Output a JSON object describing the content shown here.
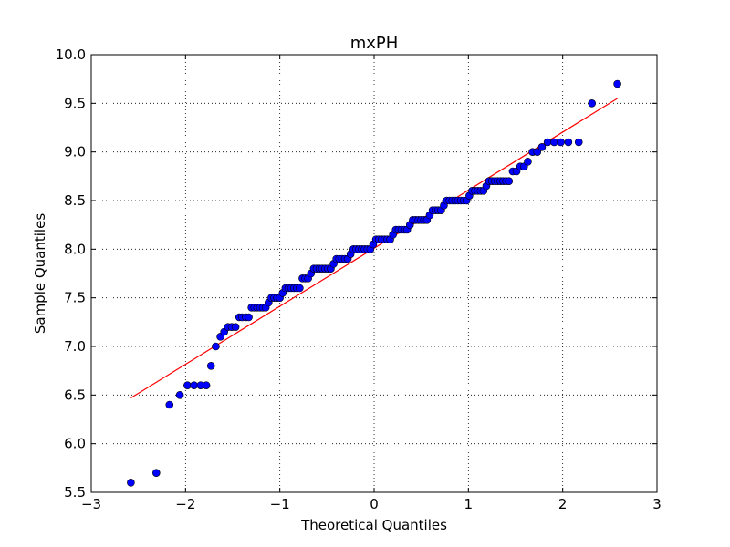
{
  "chart_data": {
    "type": "scatter",
    "title": "mxPH",
    "xlabel": "Theoretical Quantiles",
    "ylabel": "Sample Quantiles",
    "xlim": [
      -3,
      3
    ],
    "ylim": [
      5.5,
      10.0
    ],
    "grid": true,
    "xticks": [
      -3,
      -2,
      -1,
      0,
      1,
      2,
      3
    ],
    "xtick_labels": [
      "−3",
      "−2",
      "−1",
      "0",
      "1",
      "2",
      "3"
    ],
    "yticks": [
      5.5,
      6.0,
      6.5,
      7.0,
      7.5,
      8.0,
      8.5,
      9.0,
      9.5,
      10.0
    ],
    "ytick_labels": [
      "5.5",
      "6.0",
      "6.5",
      "7.0",
      "7.5",
      "8.0",
      "8.5",
      "9.0",
      "9.5",
      "10.0"
    ],
    "colors": {
      "points": "#0000ff",
      "point_edge": "#000000",
      "fit_line": "#ff0000",
      "grid": "#000000"
    },
    "fit_line": {
      "x": [
        -2.58,
        2.58
      ],
      "y": [
        6.47,
        9.55
      ]
    },
    "points": [
      [
        -2.58,
        5.6
      ],
      [
        -2.31,
        5.7
      ],
      [
        -2.17,
        6.4
      ],
      [
        -2.06,
        6.5
      ],
      [
        -1.98,
        6.6
      ],
      [
        -1.91,
        6.6
      ],
      [
        -1.84,
        6.6
      ],
      [
        -1.78,
        6.6
      ],
      [
        -1.73,
        6.8
      ],
      [
        -1.68,
        7.0
      ],
      [
        -1.63,
        7.1
      ],
      [
        -1.59,
        7.15
      ],
      [
        -1.55,
        7.2
      ],
      [
        -1.51,
        7.2
      ],
      [
        -1.47,
        7.2
      ],
      [
        -1.43,
        7.3
      ],
      [
        -1.4,
        7.3
      ],
      [
        -1.36,
        7.3
      ],
      [
        -1.33,
        7.3
      ],
      [
        -1.3,
        7.4
      ],
      [
        -1.27,
        7.4
      ],
      [
        -1.24,
        7.4
      ],
      [
        -1.21,
        7.4
      ],
      [
        -1.18,
        7.4
      ],
      [
        -1.15,
        7.4
      ],
      [
        -1.12,
        7.45
      ],
      [
        -1.09,
        7.5
      ],
      [
        -1.06,
        7.5
      ],
      [
        -1.03,
        7.5
      ],
      [
        -1.0,
        7.5
      ],
      [
        -0.97,
        7.55
      ],
      [
        -0.94,
        7.6
      ],
      [
        -0.91,
        7.6
      ],
      [
        -0.88,
        7.6
      ],
      [
        -0.85,
        7.6
      ],
      [
        -0.82,
        7.6
      ],
      [
        -0.79,
        7.6
      ],
      [
        -0.76,
        7.7
      ],
      [
        -0.73,
        7.7
      ],
      [
        -0.7,
        7.7
      ],
      [
        -0.67,
        7.75
      ],
      [
        -0.64,
        7.8
      ],
      [
        -0.61,
        7.8
      ],
      [
        -0.58,
        7.8
      ],
      [
        -0.55,
        7.8
      ],
      [
        -0.52,
        7.8
      ],
      [
        -0.49,
        7.8
      ],
      [
        -0.46,
        7.8
      ],
      [
        -0.43,
        7.85
      ],
      [
        -0.4,
        7.9
      ],
      [
        -0.37,
        7.9
      ],
      [
        -0.34,
        7.9
      ],
      [
        -0.31,
        7.9
      ],
      [
        -0.28,
        7.9
      ],
      [
        -0.25,
        7.95
      ],
      [
        -0.22,
        8.0
      ],
      [
        -0.19,
        8.0
      ],
      [
        -0.16,
        8.0
      ],
      [
        -0.13,
        8.0
      ],
      [
        -0.1,
        8.0
      ],
      [
        -0.07,
        8.0
      ],
      [
        -0.04,
        8.0
      ],
      [
        -0.01,
        8.05
      ],
      [
        0.02,
        8.1
      ],
      [
        0.05,
        8.1
      ],
      [
        0.08,
        8.1
      ],
      [
        0.11,
        8.1
      ],
      [
        0.14,
        8.1
      ],
      [
        0.17,
        8.1
      ],
      [
        0.2,
        8.15
      ],
      [
        0.23,
        8.2
      ],
      [
        0.26,
        8.2
      ],
      [
        0.29,
        8.2
      ],
      [
        0.32,
        8.2
      ],
      [
        0.35,
        8.2
      ],
      [
        0.38,
        8.25
      ],
      [
        0.41,
        8.3
      ],
      [
        0.44,
        8.3
      ],
      [
        0.47,
        8.3
      ],
      [
        0.5,
        8.3
      ],
      [
        0.53,
        8.3
      ],
      [
        0.56,
        8.3
      ],
      [
        0.59,
        8.35
      ],
      [
        0.62,
        8.4
      ],
      [
        0.65,
        8.4
      ],
      [
        0.68,
        8.4
      ],
      [
        0.71,
        8.4
      ],
      [
        0.74,
        8.45
      ],
      [
        0.77,
        8.5
      ],
      [
        0.8,
        8.5
      ],
      [
        0.83,
        8.5
      ],
      [
        0.86,
        8.5
      ],
      [
        0.89,
        8.5
      ],
      [
        0.92,
        8.5
      ],
      [
        0.95,
        8.5
      ],
      [
        0.98,
        8.5
      ],
      [
        1.01,
        8.55
      ],
      [
        1.04,
        8.6
      ],
      [
        1.07,
        8.6
      ],
      [
        1.1,
        8.6
      ],
      [
        1.13,
        8.6
      ],
      [
        1.16,
        8.6
      ],
      [
        1.19,
        8.65
      ],
      [
        1.22,
        8.7
      ],
      [
        1.25,
        8.7
      ],
      [
        1.28,
        8.7
      ],
      [
        1.31,
        8.7
      ],
      [
        1.34,
        8.7
      ],
      [
        1.37,
        8.7
      ],
      [
        1.4,
        8.7
      ],
      [
        1.43,
        8.7
      ],
      [
        1.47,
        8.8
      ],
      [
        1.51,
        8.8
      ],
      [
        1.55,
        8.85
      ],
      [
        1.59,
        8.85
      ],
      [
        1.63,
        8.9
      ],
      [
        1.68,
        9.0
      ],
      [
        1.73,
        9.0
      ],
      [
        1.78,
        9.05
      ],
      [
        1.84,
        9.1
      ],
      [
        1.91,
        9.1
      ],
      [
        1.98,
        9.1
      ],
      [
        2.06,
        9.1
      ],
      [
        2.17,
        9.1
      ],
      [
        2.31,
        9.5
      ],
      [
        2.58,
        9.7
      ]
    ]
  }
}
